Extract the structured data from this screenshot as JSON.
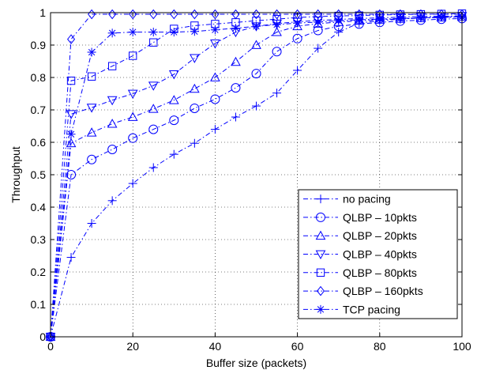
{
  "chart_data": {
    "type": "line",
    "title": "",
    "xlabel": "Buffer size (packets)",
    "ylabel": "Throughput",
    "xlim": [
      0,
      100
    ],
    "ylim": [
      0,
      1
    ],
    "xticks": [
      0,
      20,
      40,
      60,
      80,
      100
    ],
    "yticks": [
      0,
      0.1,
      0.2,
      0.3,
      0.4,
      0.5,
      0.6,
      0.7,
      0.8,
      0.9,
      1
    ],
    "xtick_labels": [
      "0",
      "20",
      "40",
      "60",
      "80",
      "100"
    ],
    "ytick_labels": [
      "0",
      "0.1",
      "0.2",
      "0.3",
      "0.4",
      "0.5",
      "0.6",
      "0.7",
      "0.8",
      "0.9",
      "1"
    ],
    "grid": true,
    "legend_position": "lower-right",
    "line_color": "#0000ff",
    "series": [
      {
        "name": "no pacing",
        "marker": "plus",
        "x": [
          0,
          5,
          10,
          15,
          20,
          25,
          30,
          35,
          40,
          45,
          50,
          55,
          60,
          65,
          70,
          75,
          80,
          85,
          90,
          95,
          100
        ],
        "y": [
          0,
          0.245,
          0.35,
          0.42,
          0.473,
          0.522,
          0.563,
          0.597,
          0.64,
          0.678,
          0.712,
          0.752,
          0.822,
          0.89,
          0.94,
          0.968,
          0.975,
          0.98,
          0.984,
          0.987,
          0.99
        ]
      },
      {
        "name": "QLBP – 10pkts",
        "marker": "circle",
        "x": [
          0,
          5,
          10,
          15,
          20,
          25,
          30,
          35,
          40,
          45,
          50,
          55,
          60,
          65,
          70,
          75,
          80,
          85,
          90,
          95,
          100
        ],
        "y": [
          0,
          0.5,
          0.547,
          0.578,
          0.613,
          0.64,
          0.668,
          0.705,
          0.733,
          0.768,
          0.812,
          0.88,
          0.92,
          0.945,
          0.958,
          0.965,
          0.97,
          0.974,
          0.977,
          0.98,
          0.982
        ]
      },
      {
        "name": "QLBP – 20pkts",
        "marker": "triangle-up",
        "x": [
          0,
          5,
          10,
          15,
          20,
          25,
          30,
          35,
          40,
          45,
          50,
          55,
          60,
          65,
          70,
          75,
          80,
          85,
          90,
          95,
          100
        ],
        "y": [
          0,
          0.597,
          0.63,
          0.657,
          0.678,
          0.703,
          0.73,
          0.765,
          0.8,
          0.848,
          0.9,
          0.94,
          0.958,
          0.966,
          0.971,
          0.975,
          0.978,
          0.981,
          0.983,
          0.985,
          0.987
        ]
      },
      {
        "name": "QLBP – 40pkts",
        "marker": "triangle-down",
        "x": [
          0,
          5,
          10,
          15,
          20,
          25,
          30,
          35,
          40,
          45,
          50,
          55,
          60,
          65,
          70,
          75,
          80,
          85,
          90,
          95,
          100
        ],
        "y": [
          0,
          0.687,
          0.707,
          0.73,
          0.75,
          0.775,
          0.81,
          0.86,
          0.905,
          0.94,
          0.958,
          0.966,
          0.972,
          0.976,
          0.979,
          0.982,
          0.984,
          0.986,
          0.988,
          0.989,
          0.99
        ]
      },
      {
        "name": "QLBP – 80pkts",
        "marker": "square",
        "x": [
          0,
          5,
          10,
          15,
          20,
          25,
          30,
          35,
          40,
          45,
          50,
          55,
          60,
          65,
          70,
          75,
          80,
          85,
          90,
          95,
          100
        ],
        "y": [
          0,
          0.79,
          0.803,
          0.835,
          0.867,
          0.908,
          0.95,
          0.96,
          0.965,
          0.97,
          0.975,
          0.98,
          0.985,
          0.988,
          0.99,
          0.991,
          0.993,
          0.994,
          0.995,
          0.996,
          0.997
        ]
      },
      {
        "name": "QLBP – 160pkts",
        "marker": "diamond",
        "x": [
          0,
          5,
          10,
          15,
          20,
          25,
          30,
          35,
          40,
          45,
          50,
          55,
          60,
          65,
          70,
          75,
          80,
          85,
          90,
          95,
          100
        ],
        "y": [
          0,
          0.918,
          0.995,
          0.995,
          0.995,
          0.995,
          0.995,
          0.995,
          0.995,
          0.995,
          0.995,
          0.995,
          0.995,
          0.995,
          0.995,
          0.995,
          0.995,
          0.995,
          0.995,
          0.995,
          0.995
        ]
      },
      {
        "name": "TCP pacing",
        "marker": "asterisk",
        "x": [
          0,
          5,
          10,
          15,
          20,
          25,
          30,
          35,
          40,
          45,
          50,
          55,
          60,
          65,
          70,
          75,
          80,
          85,
          90,
          95,
          100
        ],
        "y": [
          0,
          0.625,
          0.878,
          0.937,
          0.94,
          0.94,
          0.94,
          0.942,
          0.947,
          0.952,
          0.958,
          0.963,
          0.968,
          0.971,
          0.975,
          0.978,
          0.98,
          0.982,
          0.984,
          0.986,
          0.987
        ]
      }
    ]
  }
}
